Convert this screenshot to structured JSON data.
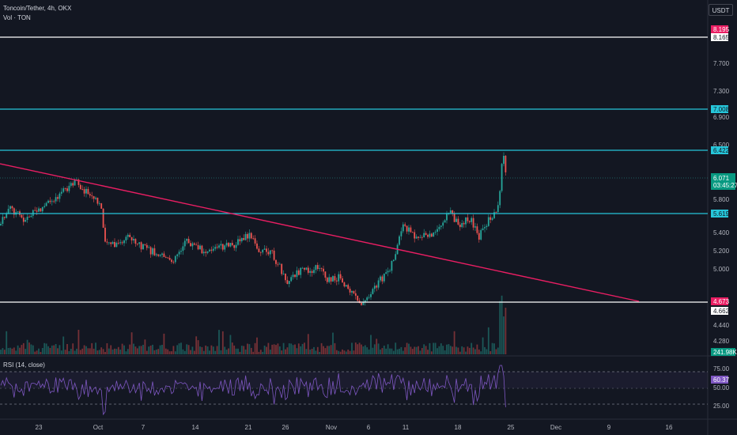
{
  "header": {
    "symbol_legend": "Toncoin/Tether, 4h, OKX",
    "volume_legend": "Vol · TON",
    "currency": "USDT"
  },
  "price_axis": {
    "ticks": [
      "7.700",
      "7.300",
      "6.900",
      "6.500",
      "5.800",
      "5.400",
      "5.200",
      "5.000",
      "4.440",
      "4.280"
    ]
  },
  "price_labels": {
    "level_white_top": "8.165",
    "level_white_top_alt": "8.195",
    "level_cyan_1": "7.008",
    "level_cyan_2": "6.422",
    "last_price": "6.071",
    "countdown": "03:45:27",
    "level_cyan_3": "5.619",
    "level_white_bottom_pink": "4.673",
    "level_white_bottom": "4.662",
    "volume_value": "241.98K"
  },
  "rsi": {
    "legend": "RSI (14, close)",
    "ticks": [
      "75.00",
      "50.00",
      "25.00"
    ],
    "value": "60.37"
  },
  "time_axis": {
    "labels": [
      "23",
      "Oct",
      "7",
      "14",
      "21",
      "26",
      "Nov",
      "6",
      "11",
      "18",
      "25",
      "Dec",
      "9",
      "16"
    ]
  },
  "colors": {
    "background": "#131722",
    "up": "#26a69a",
    "down": "#ef5350",
    "cyan_level": "#26c6da",
    "white_level": "#ffffff",
    "trendline": "#e91e63",
    "rsi_line": "#7e57c2",
    "axis_text": "#b2b5be"
  }
}
